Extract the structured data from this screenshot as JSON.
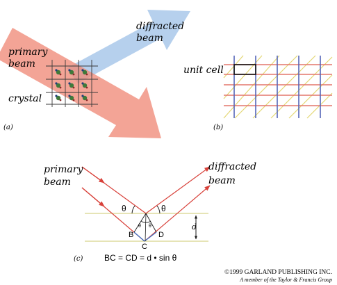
{
  "figure": {
    "panel_a": {
      "label": "(a)",
      "primary_beam_line1": "primary",
      "primary_beam_line2": "beam",
      "diffracted_beam_line1": "diffracted",
      "diffracted_beam_line2": "beam",
      "crystal_label": "crystal"
    },
    "panel_b": {
      "label": "(b)",
      "unit_cell_label": "unit cell"
    },
    "panel_c": {
      "label": "(c)",
      "primary_beam_line1": "primary",
      "primary_beam_line2": "beam",
      "diffracted_beam_line1": "diffracted",
      "diffracted_beam_line2": "beam",
      "theta_symbol": "θ",
      "point_b": "B",
      "point_c": "C",
      "point_d": "D",
      "spacing_label": "d",
      "equation": "BC = CD = d • sin θ"
    },
    "copyright": {
      "line1": "©1999 GARLAND PUBLISHING INC.",
      "line2": "A member of the Taylor & Francis Group"
    }
  },
  "colors": {
    "primary_beam": "#f08a78",
    "diffracted_beam": "#a9c8ea",
    "ray": "#d8413a",
    "lattice_line": "#3a3a3a",
    "plane_line": "#d6d48a",
    "construction": "#3a6fc4",
    "unit_cell_red": "#e3776b",
    "unit_cell_blue": "#5566b8",
    "unit_cell_yellow": "#e4d774"
  }
}
